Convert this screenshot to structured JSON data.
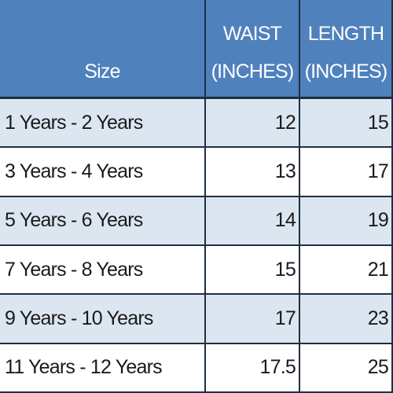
{
  "table": {
    "header": [
      [
        "Size"
      ],
      [
        "WAIST",
        "(INCHES)"
      ],
      [
        "LENGTH",
        "(INCHES)"
      ]
    ],
    "rows": [
      [
        "1 Years - 2 Years",
        12,
        15
      ],
      [
        "3 Years - 4 Years",
        13,
        17
      ],
      [
        "5 Years - 6 Years",
        14,
        19
      ],
      [
        "7 Years - 8 Years",
        15,
        21
      ],
      [
        "9 Years - 10 Years",
        17,
        23
      ],
      [
        "11 Years - 12 Years",
        17.5,
        25
      ]
    ]
  }
}
